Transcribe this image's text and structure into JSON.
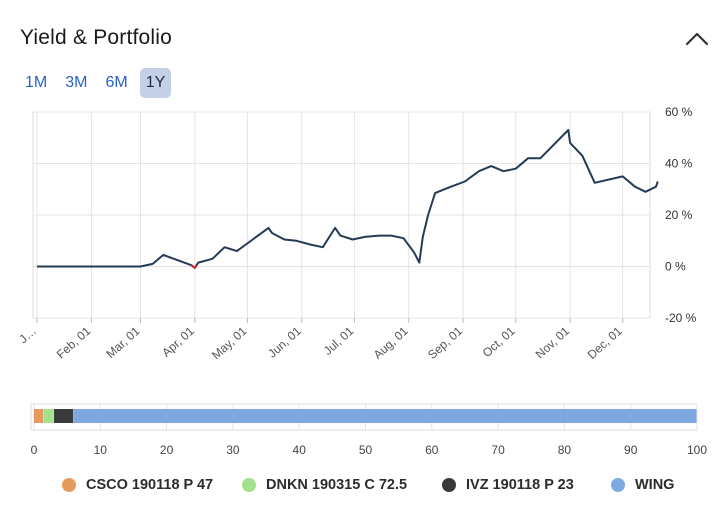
{
  "header": {
    "title": "Yield & Portfolio",
    "collapse_icon": "chevron-up-icon"
  },
  "ranges": [
    {
      "label": "1M",
      "active": false
    },
    {
      "label": "3M",
      "active": false
    },
    {
      "label": "6M",
      "active": false
    },
    {
      "label": "1Y",
      "active": true
    }
  ],
  "chart_data": [
    {
      "type": "line",
      "title": "",
      "xlabel": "",
      "ylabel": "",
      "x_ticks": [
        "J…",
        "Feb, 01",
        "Mar, 01",
        "Apr, 01",
        "May, 01",
        "Jun, 01",
        "Jul, 01",
        "Aug, 01",
        "Sep, 01",
        "Oct, 01",
        "Nov, 01",
        "Dec, 01"
      ],
      "y_ticks": [
        "60 %",
        "40 %",
        "20 %",
        "0 %",
        "-20 %"
      ],
      "ylim": [
        -20,
        60
      ],
      "xlim": [
        "2018-01-01",
        "2018-12-12"
      ],
      "grid": true,
      "series": [
        {
          "color": "#243b55",
          "points": [
            [
              "2018-01-01",
              0
            ],
            [
              "2018-01-15",
              0
            ],
            [
              "2018-02-01",
              0
            ],
            [
              "2018-02-15",
              0
            ],
            [
              "2018-03-01",
              0
            ],
            [
              "2018-03-08",
              1
            ],
            [
              "2018-03-14",
              4.5
            ],
            [
              "2018-03-22",
              2.5
            ],
            [
              "2018-03-30",
              0.5
            ],
            [
              "2018-04-01",
              -0.5
            ],
            [
              "2018-04-03",
              1.5
            ],
            [
              "2018-04-11",
              3
            ],
            [
              "2018-04-18",
              7.5
            ],
            [
              "2018-04-25",
              6
            ],
            [
              "2018-05-13",
              15
            ],
            [
              "2018-05-15",
              13
            ],
            [
              "2018-05-22",
              10.5
            ],
            [
              "2018-05-29",
              10
            ],
            [
              "2018-06-06",
              8.5
            ],
            [
              "2018-06-13",
              7.5
            ],
            [
              "2018-06-20",
              15
            ],
            [
              "2018-06-23",
              12
            ],
            [
              "2018-06-30",
              10.5
            ],
            [
              "2018-07-07",
              11.5
            ],
            [
              "2018-07-15",
              12
            ],
            [
              "2018-07-22",
              12
            ],
            [
              "2018-07-29",
              11
            ],
            [
              "2018-08-04",
              5.5
            ],
            [
              "2018-08-07",
              1.5
            ],
            [
              "2018-08-09",
              11.5
            ],
            [
              "2018-08-12",
              20
            ],
            [
              "2018-08-16",
              28.5
            ],
            [
              "2018-08-25",
              31
            ],
            [
              "2018-09-02",
              33
            ],
            [
              "2018-09-10",
              37
            ],
            [
              "2018-09-17",
              39
            ],
            [
              "2018-09-24",
              37
            ],
            [
              "2018-10-01",
              38
            ],
            [
              "2018-10-08",
              42
            ],
            [
              "2018-10-15",
              42
            ],
            [
              "2018-10-31",
              53
            ],
            [
              "2018-11-01",
              48
            ],
            [
              "2018-11-08",
              43
            ],
            [
              "2018-11-15",
              32.5
            ],
            [
              "2018-12-01",
              35
            ],
            [
              "2018-12-08",
              31
            ],
            [
              "2018-12-14",
              29
            ],
            [
              "2018-12-20",
              31
            ],
            [
              "2018-12-21",
              33
            ]
          ]
        },
        {
          "color": "#d9222a",
          "points": [
            [
              "2018-03-30",
              0.5
            ],
            [
              "2018-04-01",
              -0.5
            ],
            [
              "2018-04-02",
              0.5
            ]
          ]
        }
      ]
    },
    {
      "type": "bar",
      "orientation": "horizontal-stacked",
      "title": "",
      "xlim": [
        0,
        100
      ],
      "x_ticks": [
        "0",
        "10",
        "20",
        "30",
        "40",
        "50",
        "60",
        "70",
        "80",
        "90",
        "100"
      ],
      "grid": true,
      "legend": "bottom",
      "series": [
        {
          "name": "CSCO 190118 P 47",
          "value": 1.5,
          "color": "#e59a5f"
        },
        {
          "name": "DNKN 190315 C 72.5",
          "value": 1.5,
          "color": "#a2e28a"
        },
        {
          "name": "IVZ 190118 P 23",
          "value": 3,
          "color": "#3a3a3d"
        },
        {
          "name": "WING",
          "value": 94,
          "color": "#7ea9e0"
        }
      ]
    }
  ]
}
